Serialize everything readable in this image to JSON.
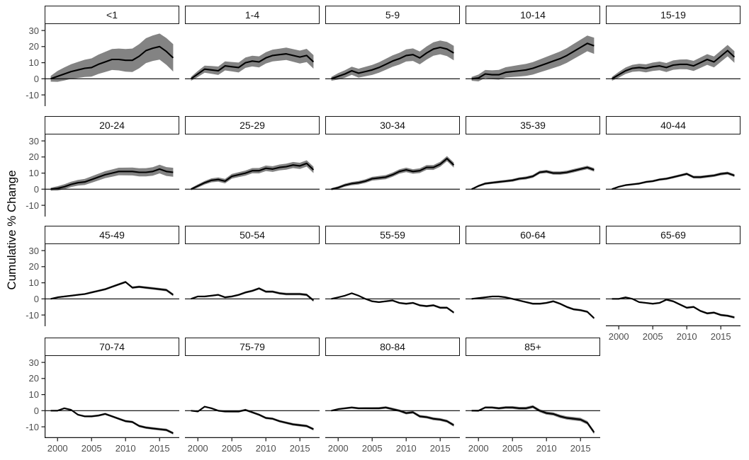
{
  "figure": {
    "type": "faceted line chart with confidence ribbons",
    "y_axis_title": "Cumulative % Change"
  },
  "chart_data": {
    "type": "line",
    "title": "",
    "xlabel": "",
    "ylabel": "Cumulative % Change",
    "grid": "off",
    "legend": "none",
    "x": [
      1999,
      2000,
      2001,
      2002,
      2003,
      2004,
      2005,
      2006,
      2007,
      2008,
      2009,
      2010,
      2011,
      2012,
      2013,
      2014,
      2015,
      2016,
      2017
    ],
    "x_ticks": [
      2000,
      2005,
      2010,
      2015
    ],
    "y_ticks": [
      30,
      20,
      10,
      0,
      -10
    ],
    "xlim": [
      1998.1,
      2017.9
    ],
    "ylim": [
      -17,
      34
    ],
    "line_color": "#000000",
    "ribbon_color": "#838383",
    "axis_text_color": "#4d4d4d",
    "zero_line_color": "#000000",
    "facets": [
      {
        "label": "<1",
        "values": [
          0,
          1.5,
          3,
          4.5,
          5.5,
          6.5,
          7,
          9,
          10.5,
          12,
          12,
          11.5,
          11.5,
          14,
          17.5,
          19,
          20,
          17,
          13
        ],
        "ribbon_hw_start": 1.8,
        "ribbon_hw_end": 8.5
      },
      {
        "label": "1-4",
        "values": [
          0,
          3,
          6,
          5.5,
          5,
          8,
          7.5,
          7,
          10,
          11,
          10.5,
          13,
          14.5,
          15,
          15.5,
          14.5,
          13.5,
          14.5,
          10.5
        ],
        "ribbon_hw_start": 1.2,
        "ribbon_hw_end": 4.2
      },
      {
        "label": "5-9",
        "values": [
          0,
          1.5,
          3,
          5,
          3.5,
          4.5,
          5.5,
          7,
          9,
          11,
          12.5,
          14.5,
          15,
          13,
          16,
          18.5,
          19.5,
          18.5,
          16
        ],
        "ribbon_hw_start": 1.2,
        "ribbon_hw_end": 4.5
      },
      {
        "label": "10-14",
        "values": [
          0,
          0.5,
          3,
          2.5,
          2.5,
          4,
          4.5,
          5,
          5.5,
          6.5,
          8,
          9.5,
          11,
          12.5,
          14.5,
          17,
          19.5,
          22,
          20.5
        ],
        "ribbon_hw_start": 1.2,
        "ribbon_hw_end": 5.0
      },
      {
        "label": "15-19",
        "values": [
          0,
          2.5,
          5,
          6.5,
          7,
          6.5,
          7.5,
          8,
          7,
          8.5,
          9,
          9,
          8,
          10,
          12,
          10.5,
          14,
          17.5,
          13.5
        ],
        "ribbon_hw_start": 1.2,
        "ribbon_hw_end": 3.6
      },
      {
        "label": "20-24",
        "values": [
          0,
          0.5,
          1.5,
          3,
          4,
          4.5,
          6,
          7.5,
          9,
          10,
          11,
          11,
          11,
          10.5,
          10.5,
          11,
          12.5,
          11,
          10.5
        ],
        "ribbon_hw_start": 0.9,
        "ribbon_hw_end": 2.8
      },
      {
        "label": "25-29",
        "values": [
          0,
          2,
          4,
          5.5,
          6,
          5,
          8,
          9,
          10,
          11.5,
          11.5,
          13,
          12.5,
          13.5,
          14,
          15,
          14.5,
          16,
          12
        ],
        "ribbon_hw_start": 0.7,
        "ribbon_hw_end": 2.0
      },
      {
        "label": "30-34",
        "values": [
          0,
          1,
          2.5,
          3.5,
          4,
          5,
          6.5,
          7,
          7.5,
          9,
          11,
          12,
          11,
          11.5,
          13.5,
          13.5,
          15.5,
          19,
          15
        ],
        "ribbon_hw_start": 0.6,
        "ribbon_hw_end": 1.6
      },
      {
        "label": "35-39",
        "values": [
          0,
          2,
          3.5,
          4,
          4.5,
          5,
          5.5,
          6.5,
          7,
          8,
          10.5,
          11,
          10,
          10,
          10.5,
          11.5,
          12.5,
          13.5,
          12
        ],
        "ribbon_hw_start": 0.5,
        "ribbon_hw_end": 1.1
      },
      {
        "label": "40-44",
        "values": [
          0,
          1.5,
          2.5,
          3,
          3.5,
          4.5,
          5,
          6,
          6.5,
          7.5,
          8.5,
          9.5,
          7.5,
          7.5,
          8,
          8.5,
          9.5,
          10,
          8.5
        ],
        "ribbon_hw_start": 0.4,
        "ribbon_hw_end": 0.9
      },
      {
        "label": "45-49",
        "values": [
          0,
          1,
          1.5,
          2,
          2.5,
          3,
          4,
          5,
          6,
          7.5,
          9,
          10.5,
          7,
          7.5,
          7,
          6.5,
          6,
          5.5,
          2.5
        ],
        "ribbon_hw_start": 0.35,
        "ribbon_hw_end": 0.8
      },
      {
        "label": "50-54",
        "values": [
          0,
          1.5,
          1.5,
          2,
          2.5,
          1,
          1.5,
          2.5,
          4,
          5,
          6.5,
          4.5,
          4.5,
          3.5,
          3,
          3,
          3,
          2.5,
          -1
        ],
        "ribbon_hw_start": 0.35,
        "ribbon_hw_end": 0.8
      },
      {
        "label": "55-59",
        "values": [
          0,
          1,
          2,
          3.5,
          2,
          0,
          -1.5,
          -2,
          -1.5,
          -1,
          -2.5,
          -3,
          -2.5,
          -4,
          -4.5,
          -4,
          -5.5,
          -5.5,
          -8.5
        ],
        "ribbon_hw_start": 0.3,
        "ribbon_hw_end": 0.7
      },
      {
        "label": "60-64",
        "values": [
          0,
          0.5,
          1,
          1.5,
          1.5,
          1,
          0,
          -1,
          -2,
          -3,
          -3,
          -2.5,
          -1.5,
          -3,
          -5,
          -6.5,
          -7,
          -8,
          -12
        ],
        "ribbon_hw_start": 0.3,
        "ribbon_hw_end": 0.7
      },
      {
        "label": "65-69",
        "values": [
          0,
          0,
          1,
          0,
          -2,
          -2.5,
          -3,
          -2.5,
          -0.5,
          -1.5,
          -3.5,
          -5.5,
          -5,
          -7.5,
          -9,
          -8.5,
          -10,
          -10.5,
          -11.5
        ],
        "ribbon_hw_start": 0.3,
        "ribbon_hw_end": 0.7
      },
      {
        "label": "70-74",
        "values": [
          0,
          0,
          1.5,
          0.5,
          -2.5,
          -3.5,
          -3.5,
          -3,
          -2,
          -3.5,
          -5,
          -6.5,
          -7,
          -9.5,
          -10.5,
          -11,
          -11.5,
          -12,
          -14
        ],
        "ribbon_hw_start": 0.35,
        "ribbon_hw_end": 0.8
      },
      {
        "label": "75-79",
        "values": [
          0,
          -0.5,
          2.5,
          1.5,
          0,
          -0.5,
          -0.5,
          -0.5,
          0.5,
          -1,
          -2.5,
          -4.5,
          -5,
          -6.5,
          -7.5,
          -8.5,
          -9,
          -9.5,
          -11.5
        ],
        "ribbon_hw_start": 0.35,
        "ribbon_hw_end": 0.8
      },
      {
        "label": "80-84",
        "values": [
          0,
          1,
          1.5,
          2,
          1.5,
          1.5,
          1.5,
          1.5,
          2,
          1,
          0,
          -1.5,
          -1,
          -3.5,
          -4,
          -5,
          -5.5,
          -6.5,
          -9
        ],
        "ribbon_hw_start": 0.4,
        "ribbon_hw_end": 0.9
      },
      {
        "label": "85+",
        "values": [
          0,
          0,
          2,
          2,
          1.5,
          2,
          2,
          1.5,
          1.5,
          2.5,
          0,
          -1.5,
          -2,
          -3.5,
          -4.5,
          -5,
          -5.5,
          -7.5,
          -13.5
        ],
        "ribbon_hw_start": 0.45,
        "ribbon_hw_end": 1.1
      }
    ]
  }
}
